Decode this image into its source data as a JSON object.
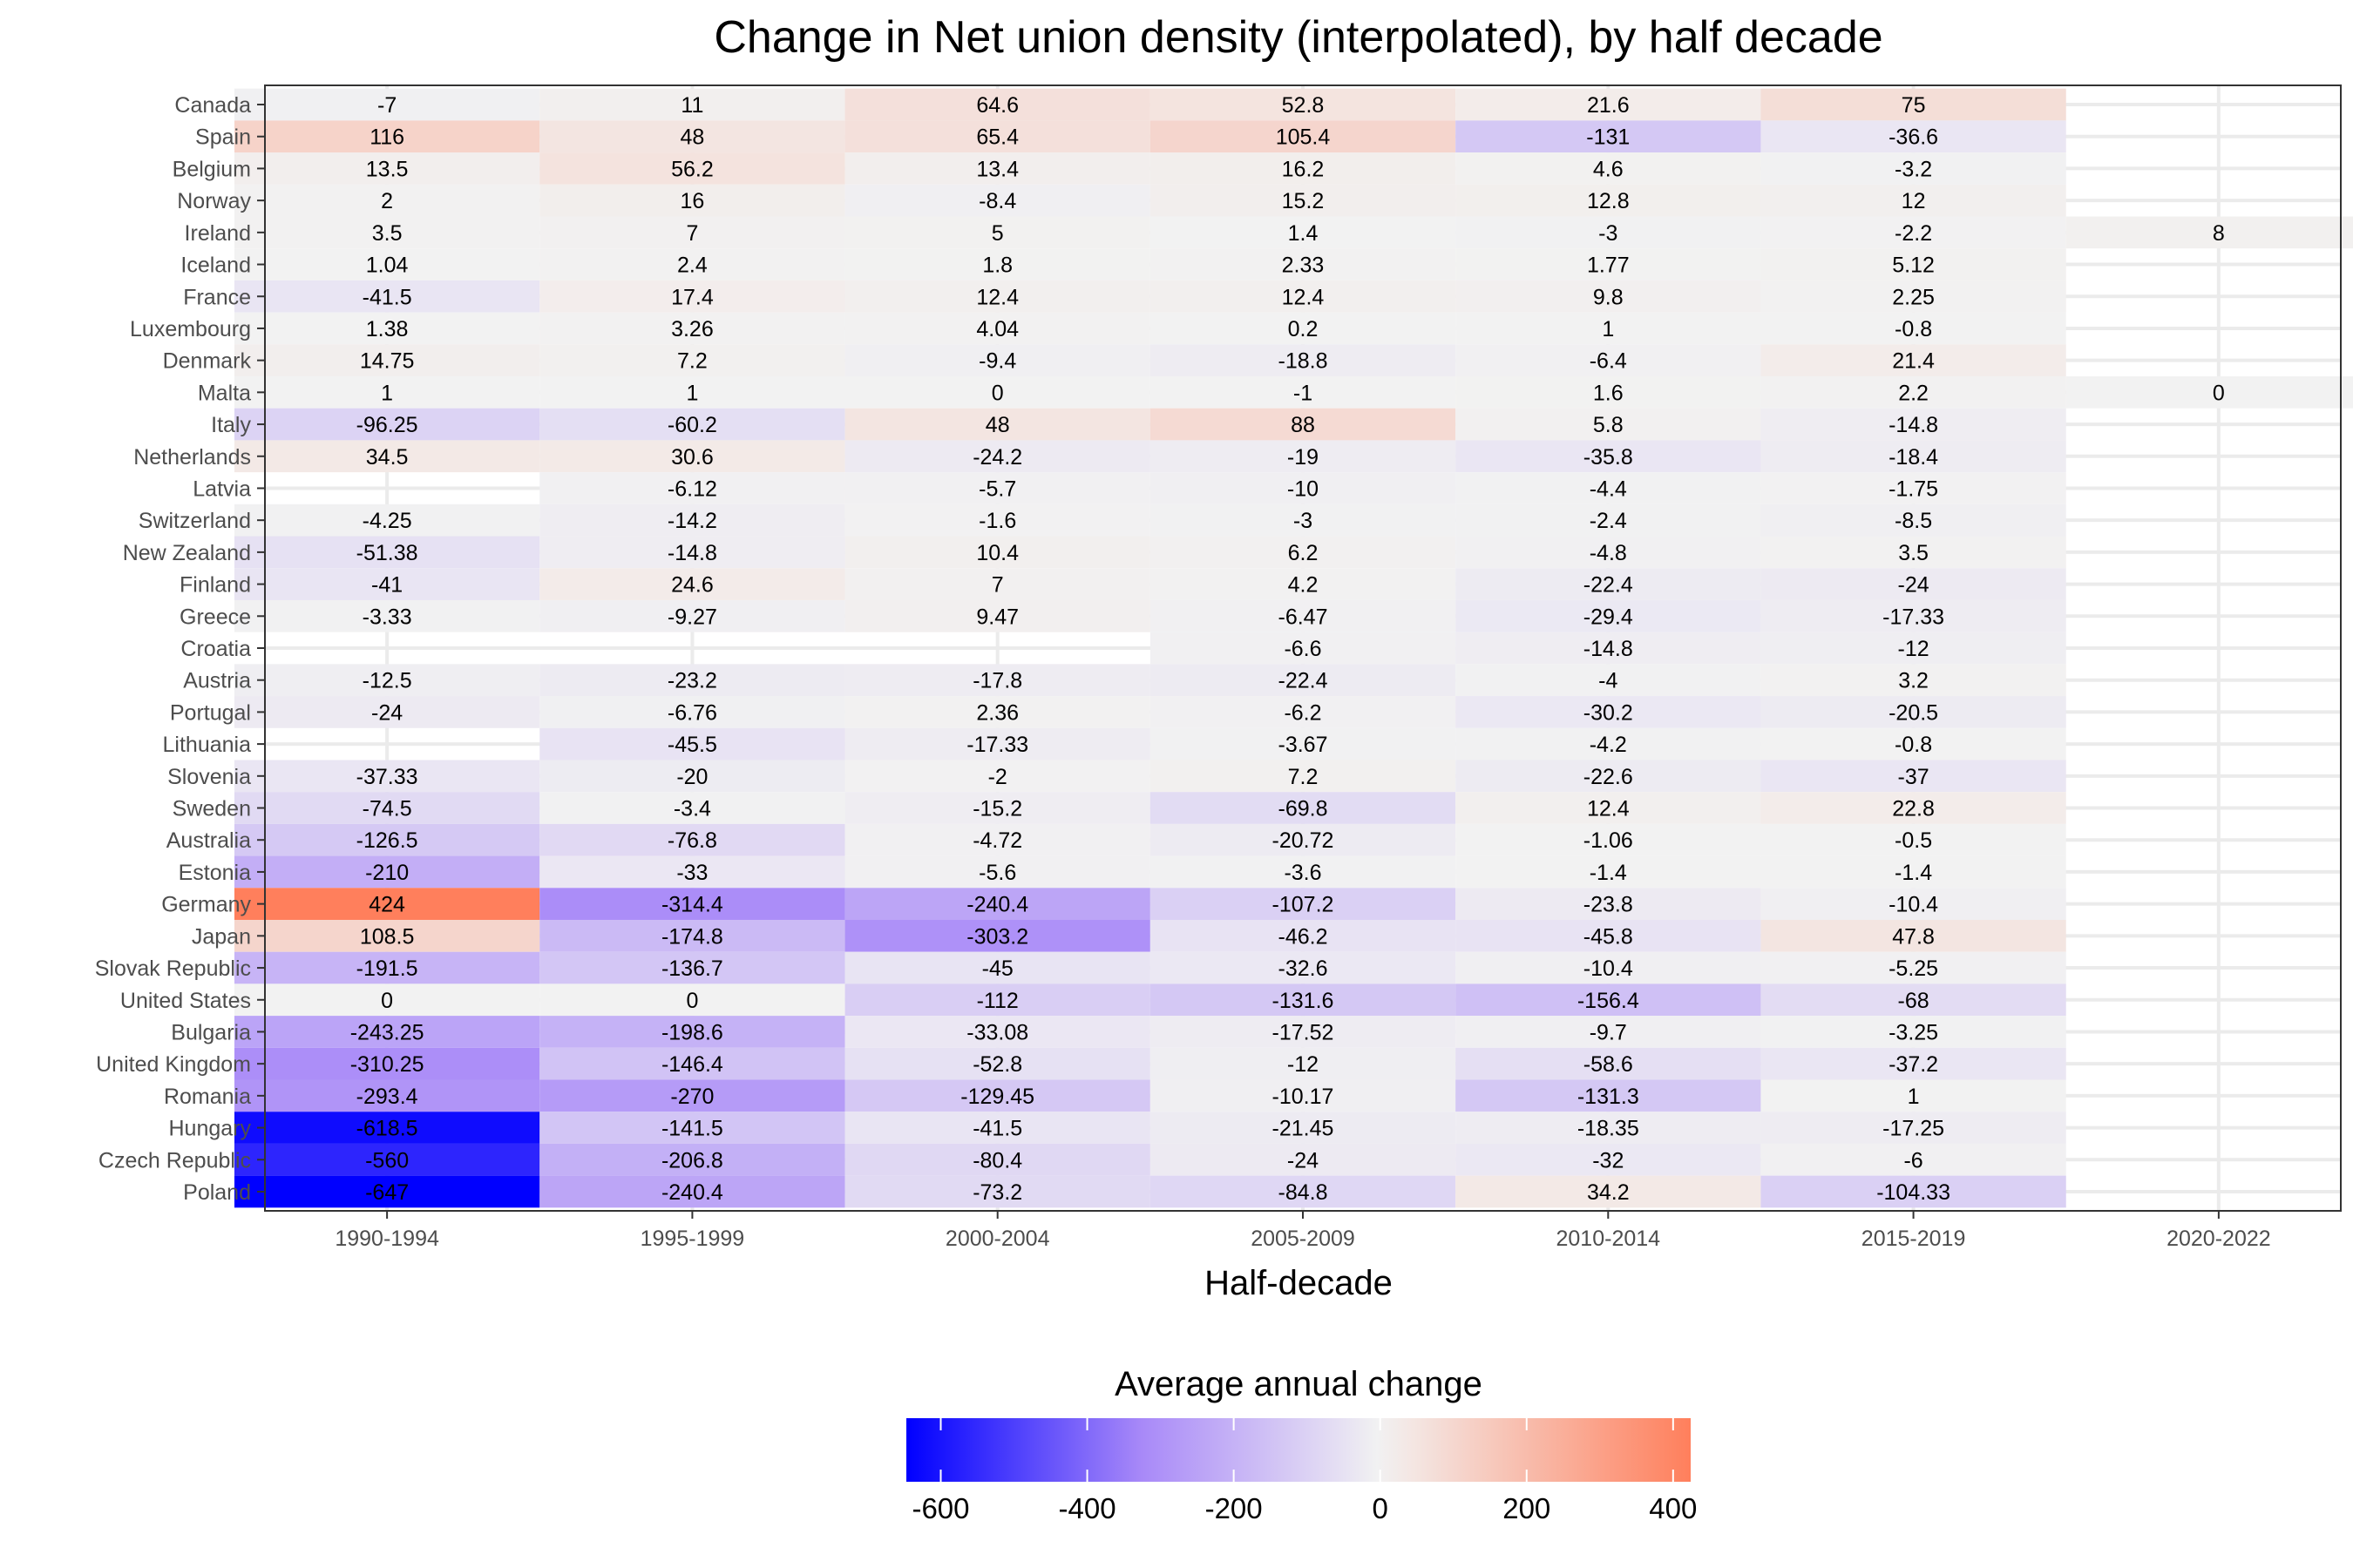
{
  "chart_data": {
    "type": "heatmap",
    "title": "Change in Net union density (interpolated), by half decade",
    "xlabel": "Half-decade",
    "ylabel": "",
    "x": [
      "1990-1994",
      "1995-1999",
      "2000-2004",
      "2005-2009",
      "2010-2014",
      "2015-2019",
      "2020-2022"
    ],
    "y": [
      "Canada",
      "Spain",
      "Belgium",
      "Norway",
      "Ireland",
      "Iceland",
      "France",
      "Luxembourg",
      "Denmark",
      "Malta",
      "Italy",
      "Netherlands",
      "Latvia",
      "Switzerland",
      "New Zealand",
      "Finland",
      "Greece",
      "Croatia",
      "Austria",
      "Portugal",
      "Lithuania",
      "Slovenia",
      "Sweden",
      "Australia",
      "Estonia",
      "Germany",
      "Japan",
      "Slovak Republic",
      "United States",
      "Bulgaria",
      "United Kingdom",
      "Romania",
      "Hungary",
      "Czech Republic",
      "Poland"
    ],
    "values": [
      [
        "-7",
        "11",
        "64.6",
        "52.8",
        "21.6",
        "75",
        null
      ],
      [
        "116",
        "48",
        "65.4",
        "105.4",
        "-131",
        "-36.6",
        null
      ],
      [
        "13.5",
        "56.2",
        "13.4",
        "16.2",
        "4.6",
        "-3.2",
        null
      ],
      [
        "2",
        "16",
        "-8.4",
        "15.2",
        "12.8",
        "12",
        null
      ],
      [
        "3.5",
        "7",
        "5",
        "1.4",
        "-3",
        "-2.2",
        "8"
      ],
      [
        "1.04",
        "2.4",
        "1.8",
        "2.33",
        "1.77",
        "5.12",
        null
      ],
      [
        "-41.5",
        "17.4",
        "12.4",
        "12.4",
        "9.8",
        "2.25",
        null
      ],
      [
        "1.38",
        "3.26",
        "4.04",
        "0.2",
        "1",
        "-0.8",
        null
      ],
      [
        "14.75",
        "7.2",
        "-9.4",
        "-18.8",
        "-6.4",
        "21.4",
        null
      ],
      [
        "1",
        "1",
        "0",
        "-1",
        "1.6",
        "2.2",
        "0"
      ],
      [
        "-96.25",
        "-60.2",
        "48",
        "88",
        "5.8",
        "-14.8",
        null
      ],
      [
        "34.5",
        "30.6",
        "-24.2",
        "-19",
        "-35.8",
        "-18.4",
        null
      ],
      [
        null,
        "-6.12",
        "-5.7",
        "-10",
        "-4.4",
        "-1.75",
        null
      ],
      [
        "-4.25",
        "-14.2",
        "-1.6",
        "-3",
        "-2.4",
        "-8.5",
        null
      ],
      [
        "-51.38",
        "-14.8",
        "10.4",
        "6.2",
        "-4.8",
        "3.5",
        null
      ],
      [
        "-41",
        "24.6",
        "7",
        "4.2",
        "-22.4",
        "-24",
        null
      ],
      [
        "-3.33",
        "-9.27",
        "9.47",
        "-6.47",
        "-29.4",
        "-17.33",
        null
      ],
      [
        null,
        null,
        null,
        "-6.6",
        "-14.8",
        "-12",
        null
      ],
      [
        "-12.5",
        "-23.2",
        "-17.8",
        "-22.4",
        "-4",
        "3.2",
        null
      ],
      [
        "-24",
        "-6.76",
        "2.36",
        "-6.2",
        "-30.2",
        "-20.5",
        null
      ],
      [
        null,
        "-45.5",
        "-17.33",
        "-3.67",
        "-4.2",
        "-0.8",
        null
      ],
      [
        "-37.33",
        "-20",
        "-2",
        "7.2",
        "-22.6",
        "-37",
        null
      ],
      [
        "-74.5",
        "-3.4",
        "-15.2",
        "-69.8",
        "12.4",
        "22.8",
        null
      ],
      [
        "-126.5",
        "-76.8",
        "-4.72",
        "-20.72",
        "-1.06",
        "-0.5",
        null
      ],
      [
        "-210",
        "-33",
        "-5.6",
        "-3.6",
        "-1.4",
        "-1.4",
        null
      ],
      [
        "424",
        "-314.4",
        "-240.4",
        "-107.2",
        "-23.8",
        "-10.4",
        null
      ],
      [
        "108.5",
        "-174.8",
        "-303.2",
        "-46.2",
        "-45.8",
        "47.8",
        null
      ],
      [
        "-191.5",
        "-136.7",
        "-45",
        "-32.6",
        "-10.4",
        "-5.25",
        null
      ],
      [
        "0",
        "0",
        "-112",
        "-131.6",
        "-156.4",
        "-68",
        null
      ],
      [
        "-243.25",
        "-198.6",
        "-33.08",
        "-17.52",
        "-9.7",
        "-3.25",
        null
      ],
      [
        "-310.25",
        "-146.4",
        "-52.8",
        "-12",
        "-58.6",
        "-37.2",
        null
      ],
      [
        "-293.4",
        "-270",
        "-129.45",
        "-10.17",
        "-131.3",
        "1",
        null
      ],
      [
        "-618.5",
        "-141.5",
        "-41.5",
        "-21.45",
        "-18.35",
        "-17.25",
        null
      ],
      [
        "-560",
        "-206.8",
        "-80.4",
        "-24",
        "-32",
        "-6",
        null
      ],
      [
        "-647",
        "-240.4",
        "-73.2",
        "-84.8",
        "34.2",
        "-104.33",
        null
      ]
    ],
    "legend": {
      "title": "Average annual change",
      "min": -647,
      "max": 424,
      "ticks": [
        "-600",
        "-400",
        "-200",
        "0",
        "200",
        "400"
      ],
      "placement": "bottom"
    },
    "colors": {
      "low": "#0000ff",
      "mid_low": "#a98af8",
      "mid": "#f2f2f2",
      "high": "#ff7f5c",
      "panel_background": "#ebebeb"
    },
    "grid": true
  }
}
